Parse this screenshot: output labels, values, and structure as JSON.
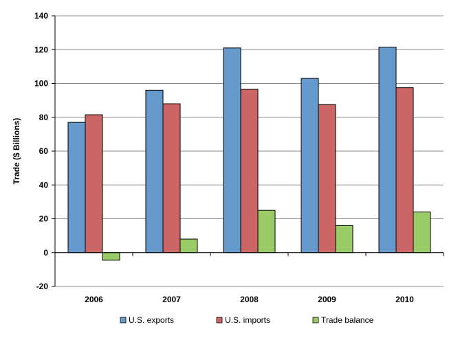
{
  "chart_data": {
    "type": "bar",
    "categories": [
      "2006",
      "2007",
      "2008",
      "2009",
      "2010"
    ],
    "series": [
      {
        "name": "U.S. exports",
        "values": [
          77,
          96,
          121,
          103,
          121.5
        ],
        "color": "#6699cc"
      },
      {
        "name": "U.S. imports",
        "values": [
          81.5,
          88,
          96.5,
          87.5,
          97.5
        ],
        "color": "#cc6666"
      },
      {
        "name": "Trade balance",
        "values": [
          -4.5,
          8,
          25,
          16,
          24
        ],
        "color": "#99cc66"
      }
    ],
    "title": "",
    "xlabel": "",
    "ylabel": "Trade ($ Billions)",
    "ylim": [
      -20,
      140
    ],
    "yticks": [
      -20,
      0,
      20,
      40,
      60,
      80,
      100,
      120,
      140
    ],
    "grid": true,
    "legend_position": "bottom"
  }
}
